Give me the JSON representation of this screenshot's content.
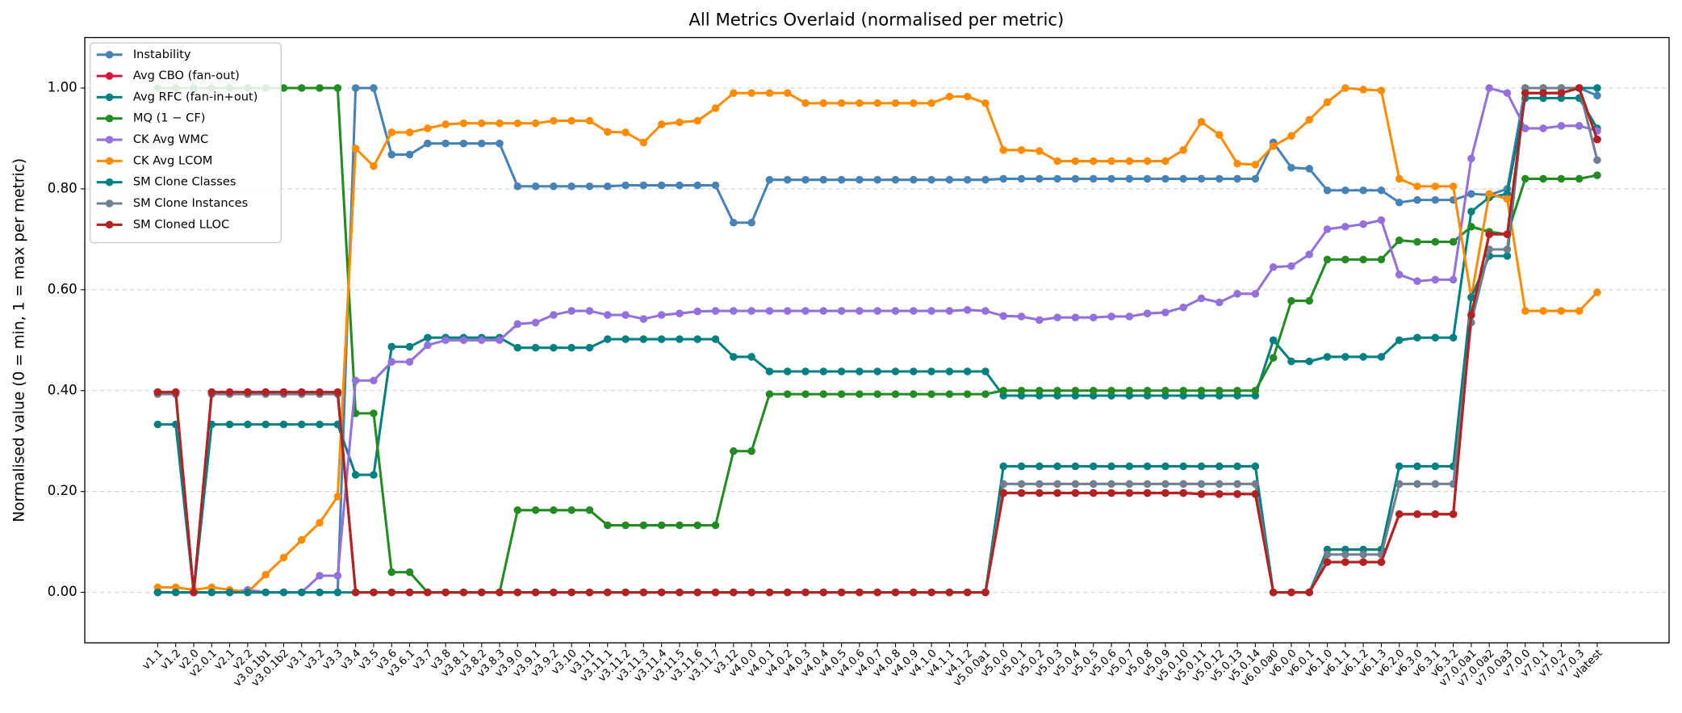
{
  "chart_data": {
    "type": "line",
    "title": "All Metrics Overlaid (normalised per metric)",
    "y_label": "Normalised value (0 = min, 1 = max per metric)",
    "categories": [
      "v1.1",
      "v1.2",
      "v2.0",
      "v2.0.1",
      "v2.1",
      "v2.2",
      "v3.0.1b1",
      "v3.0.1b2",
      "v3.1",
      "v3.2",
      "v3.3",
      "v3.4",
      "v3.5",
      "v3.6",
      "v3.6.1",
      "v3.7",
      "v3.8",
      "v3.8.1",
      "v3.8.2",
      "v3.8.3",
      "v3.9.0",
      "v3.9.1",
      "v3.9.2",
      "v3.10",
      "v3.11",
      "v3.11.1",
      "v3.11.2",
      "v3.11.3",
      "v3.11.4",
      "v3.11.5",
      "v3.11.6",
      "v3.11.7",
      "v3.12",
      "v4.0.0",
      "v4.0.1",
      "v4.0.2",
      "v4.0.3",
      "v4.0.4",
      "v4.0.5",
      "v4.0.6",
      "v4.0.7",
      "v4.0.8",
      "v4.0.9",
      "v4.1.0",
      "v4.1.1",
      "v4.1.2",
      "v5.0.0a1",
      "v5.0.0",
      "v5.0.1",
      "v5.0.2",
      "v5.0.3",
      "v5.0.4",
      "v5.0.5",
      "v5.0.6",
      "v5.0.7",
      "v5.0.8",
      "v5.0.9",
      "v5.0.10",
      "v5.0.11",
      "v5.0.12",
      "v5.0.13",
      "v5.0.14",
      "v6.0.0a0",
      "v6.0.0",
      "v6.0.1",
      "v6.1.0",
      "v6.1.1",
      "v6.1.2",
      "v6.1.3",
      "v6.2.0",
      "v6.3.0",
      "v6.3.1",
      "v6.3.2",
      "v7.0.0a1",
      "v7.0.0a2",
      "v7.0.0a3",
      "v7.0.0",
      "v7.0.1",
      "v7.0.2",
      "v7.0.3",
      "vlatest"
    ],
    "series": [
      {
        "name": "Instability",
        "color": "#4682b4",
        "values": [
          0,
          0,
          0,
          0,
          0,
          0,
          0,
          0,
          0,
          0,
          0,
          1,
          1,
          0.868,
          0.868,
          0.89,
          0.89,
          0.89,
          0.89,
          0.89,
          0.805,
          0.805,
          0.805,
          0.805,
          0.805,
          0.805,
          0.807,
          0.807,
          0.807,
          0.807,
          0.807,
          0.807,
          0.733,
          0.733,
          0.818,
          0.818,
          0.818,
          0.818,
          0.818,
          0.818,
          0.818,
          0.818,
          0.818,
          0.818,
          0.818,
          0.818,
          0.818,
          0.82,
          0.82,
          0.82,
          0.82,
          0.82,
          0.82,
          0.82,
          0.82,
          0.82,
          0.82,
          0.82,
          0.82,
          0.82,
          0.82,
          0.82,
          0.892,
          0.842,
          0.84,
          0.797,
          0.797,
          0.797,
          0.797,
          0.773,
          0.778,
          0.778,
          0.778,
          0.79,
          0.788,
          0.8,
          1,
          1,
          1,
          1,
          0.985
        ]
      },
      {
        "name": "Avg CBO (fan-out)",
        "color": "#dc143c",
        "values": [
          0.397,
          0.397,
          0,
          0.397,
          0.397,
          0.397,
          0.397,
          0.397,
          0.397,
          0.397,
          0.397,
          0,
          0,
          0,
          0,
          0,
          0,
          0,
          0,
          0,
          0,
          0,
          0,
          0,
          0,
          0,
          0,
          0,
          0,
          0,
          0,
          0,
          0,
          0,
          0,
          0,
          0,
          0,
          0,
          0,
          0,
          0,
          0,
          0,
          0,
          0,
          0,
          0.197,
          0.197,
          0.197,
          0.197,
          0.197,
          0.197,
          0.197,
          0.197,
          0.197,
          0.197,
          0.197,
          0.195,
          0.195,
          0.195,
          0.195,
          0,
          0,
          0,
          0.06,
          0.06,
          0.06,
          0.06,
          0.155,
          0.155,
          0.155,
          0.155,
          0.55,
          0.71,
          0.71,
          0.99,
          0.99,
          0.99,
          1,
          0.898
        ]
      },
      {
        "name": "Avg RFC (fan-in+out)",
        "color": "#008080",
        "values": [
          0.333,
          0.333,
          0,
          0.333,
          0.333,
          0.333,
          0.333,
          0.333,
          0.333,
          0.333,
          0.333,
          0.233,
          0.233,
          0.487,
          0.487,
          0.505,
          0.505,
          0.505,
          0.505,
          0.505,
          0.485,
          0.485,
          0.485,
          0.485,
          0.485,
          0.502,
          0.502,
          0.502,
          0.502,
          0.502,
          0.502,
          0.502,
          0.467,
          0.467,
          0.438,
          0.438,
          0.438,
          0.438,
          0.438,
          0.438,
          0.438,
          0.438,
          0.438,
          0.438,
          0.438,
          0.438,
          0.438,
          0.39,
          0.39,
          0.39,
          0.39,
          0.39,
          0.39,
          0.39,
          0.39,
          0.39,
          0.39,
          0.39,
          0.39,
          0.39,
          0.39,
          0.39,
          0.5,
          0.458,
          0.458,
          0.467,
          0.467,
          0.467,
          0.467,
          0.5,
          0.505,
          0.505,
          0.505,
          0.755,
          0.783,
          0.79,
          0.98,
          0.98,
          0.98,
          0.98,
          0.92
        ]
      },
      {
        "name": "MQ (1 − CF)",
        "color": "#228b22",
        "values": [
          1,
          1,
          1,
          1,
          1,
          1,
          1,
          1,
          1,
          1,
          1,
          0.355,
          0.355,
          0.04,
          0.04,
          0,
          0,
          0,
          0,
          0,
          0.163,
          0.163,
          0.163,
          0.163,
          0.163,
          0.133,
          0.133,
          0.133,
          0.133,
          0.133,
          0.133,
          0.133,
          0.28,
          0.28,
          0.393,
          0.393,
          0.393,
          0.393,
          0.393,
          0.393,
          0.393,
          0.393,
          0.393,
          0.393,
          0.393,
          0.393,
          0.393,
          0.4,
          0.4,
          0.4,
          0.4,
          0.4,
          0.4,
          0.4,
          0.4,
          0.4,
          0.4,
          0.4,
          0.4,
          0.4,
          0.4,
          0.4,
          0.465,
          0.578,
          0.578,
          0.66,
          0.66,
          0.66,
          0.66,
          0.698,
          0.695,
          0.695,
          0.695,
          0.725,
          0.715,
          0.71,
          0.82,
          0.82,
          0.82,
          0.82,
          0.827
        ]
      },
      {
        "name": "CK Avg WMC",
        "color": "#9370db",
        "values": [
          0,
          0,
          0,
          0,
          0,
          0.005,
          0,
          0,
          0,
          0.033,
          0.033,
          0.42,
          0.42,
          0.457,
          0.457,
          0.49,
          0.5,
          0.5,
          0.5,
          0.5,
          0.532,
          0.535,
          0.55,
          0.558,
          0.558,
          0.55,
          0.55,
          0.542,
          0.55,
          0.553,
          0.557,
          0.558,
          0.558,
          0.558,
          0.558,
          0.558,
          0.558,
          0.558,
          0.558,
          0.558,
          0.558,
          0.558,
          0.558,
          0.558,
          0.558,
          0.56,
          0.558,
          0.548,
          0.547,
          0.54,
          0.545,
          0.545,
          0.545,
          0.547,
          0.547,
          0.553,
          0.555,
          0.565,
          0.583,
          0.575,
          0.592,
          0.592,
          0.645,
          0.647,
          0.67,
          0.72,
          0.725,
          0.73,
          0.738,
          0.63,
          0.617,
          0.62,
          0.62,
          0.86,
          1,
          0.99,
          0.92,
          0.92,
          0.925,
          0.925,
          0.915
        ]
      },
      {
        "name": "CK Avg LCOM",
        "color": "#ff8c00",
        "values": [
          0.01,
          0.01,
          0.005,
          0.01,
          0.005,
          0,
          0.035,
          0.069,
          0.104,
          0.138,
          0.19,
          0.88,
          0.845,
          0.912,
          0.912,
          0.92,
          0.928,
          0.93,
          0.93,
          0.93,
          0.93,
          0.93,
          0.935,
          0.935,
          0.935,
          0.913,
          0.912,
          0.892,
          0.928,
          0.932,
          0.935,
          0.96,
          0.99,
          0.99,
          0.99,
          0.99,
          0.97,
          0.97,
          0.97,
          0.97,
          0.97,
          0.97,
          0.97,
          0.97,
          0.983,
          0.983,
          0.97,
          0.877,
          0.877,
          0.875,
          0.855,
          0.855,
          0.855,
          0.855,
          0.855,
          0.855,
          0.855,
          0.877,
          0.933,
          0.907,
          0.85,
          0.848,
          0.885,
          0.905,
          0.937,
          0.972,
          1,
          0.997,
          0.995,
          0.82,
          0.805,
          0.805,
          0.805,
          0.585,
          0.79,
          0.78,
          0.558,
          0.558,
          0.558,
          0.558,
          0.595
        ]
      },
      {
        "name": "SM Clone Classes",
        "color": "#008080",
        "values": [
          0,
          0,
          0,
          0,
          0,
          0,
          0,
          0,
          0,
          0,
          0,
          0,
          0,
          0,
          0,
          0,
          0,
          0,
          0,
          0,
          0,
          0,
          0,
          0,
          0,
          0,
          0,
          0,
          0,
          0,
          0,
          0,
          0,
          0,
          0,
          0,
          0,
          0,
          0,
          0,
          0,
          0,
          0,
          0,
          0,
          0,
          0,
          0.25,
          0.25,
          0.25,
          0.25,
          0.25,
          0.25,
          0.25,
          0.25,
          0.25,
          0.25,
          0.25,
          0.25,
          0.25,
          0.25,
          0.25,
          0,
          0,
          0,
          0.085,
          0.085,
          0.085,
          0.085,
          0.25,
          0.25,
          0.25,
          0.25,
          0.585,
          0.667,
          0.667,
          1,
          1,
          1,
          1,
          1
        ]
      },
      {
        "name": "SM Clone Instances",
        "color": "#708090",
        "values": [
          0.393,
          0.393,
          0,
          0.393,
          0.393,
          0.393,
          0.393,
          0.393,
          0.393,
          0.393,
          0.393,
          0,
          0,
          0,
          0,
          0,
          0,
          0,
          0,
          0,
          0,
          0,
          0,
          0,
          0,
          0,
          0,
          0,
          0,
          0,
          0,
          0,
          0,
          0,
          0,
          0,
          0,
          0,
          0,
          0,
          0,
          0,
          0,
          0,
          0,
          0,
          0,
          0.215,
          0.215,
          0.215,
          0.215,
          0.215,
          0.215,
          0.215,
          0.215,
          0.215,
          0.215,
          0.215,
          0.215,
          0.215,
          0.215,
          0.215,
          0,
          0,
          0,
          0.075,
          0.075,
          0.075,
          0.075,
          0.215,
          0.215,
          0.215,
          0.215,
          0.535,
          0.68,
          0.68,
          1,
          1,
          1,
          1,
          0.857
        ]
      },
      {
        "name": "SM Cloned LLOC",
        "color": "#b22222",
        "values": [
          0.397,
          0.397,
          0,
          0.397,
          0.397,
          0.397,
          0.397,
          0.397,
          0.397,
          0.397,
          0.397,
          0,
          0,
          0,
          0,
          0,
          0,
          0,
          0,
          0,
          0,
          0,
          0,
          0,
          0,
          0,
          0,
          0,
          0,
          0,
          0,
          0,
          0,
          0,
          0,
          0,
          0,
          0,
          0,
          0,
          0,
          0,
          0,
          0,
          0,
          0,
          0,
          0.197,
          0.197,
          0.197,
          0.197,
          0.197,
          0.197,
          0.197,
          0.197,
          0.197,
          0.197,
          0.197,
          0.195,
          0.195,
          0.195,
          0.195,
          0,
          0,
          0,
          0.06,
          0.06,
          0.06,
          0.06,
          0.155,
          0.155,
          0.155,
          0.155,
          0.55,
          0.71,
          0.71,
          0.99,
          0.99,
          0.99,
          1,
          0.898
        ]
      }
    ],
    "ylim": [
      -0.1,
      1.1
    ],
    "yticks": [
      {
        "value": 0,
        "label": "0.00"
      },
      {
        "value": 0.2,
        "label": "0.20"
      },
      {
        "value": 0.4,
        "label": "0.40"
      },
      {
        "value": 0.6,
        "label": "0.60"
      },
      {
        "value": 0.8,
        "label": "0.80"
      },
      {
        "value": 1,
        "label": "1.00"
      }
    ],
    "grid": true,
    "legend": "upper left"
  }
}
